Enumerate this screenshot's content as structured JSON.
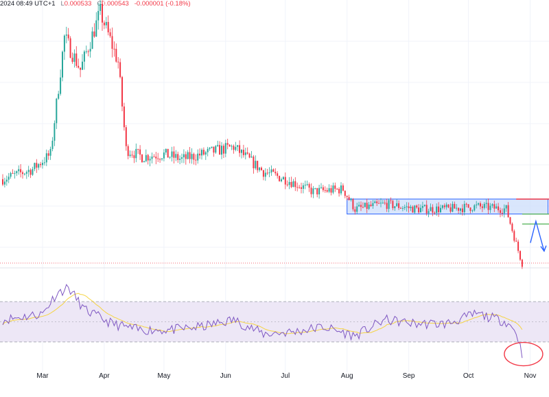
{
  "header": {
    "datetime": "2024 08:49 UTC+1",
    "low_key": "L",
    "low_val": "0.000533",
    "close_key": "C",
    "close_val": "0.000543",
    "change": "-0.000001 (-0.18%)"
  },
  "colors": {
    "up": "#26a69a",
    "down": "#f23645",
    "range_box_fill": "#cfe0fb",
    "range_box_border": "#2962ff",
    "resistance_line": "#f23645",
    "target_line": "#4caf50",
    "arrow": "#2962ff",
    "rsi_line": "#7e57c2",
    "rsi_ma": "#f5d442",
    "rsi_band": "#ede7f6",
    "oversold_circle": "#f23645"
  },
  "chart_data": [
    {
      "type": "candlestick",
      "title": "",
      "x_tick_labels": [
        "Mar",
        "Apr",
        "May",
        "Jun",
        "Jul",
        "Aug",
        "Sep",
        "Oct",
        "Nov"
      ],
      "approx_close_path": [
        {
          "date": "2024-02-10",
          "close": 0.00088
        },
        {
          "date": "2024-02-25",
          "close": 0.00092
        },
        {
          "date": "2024-03-05",
          "close": 0.00098
        },
        {
          "date": "2024-03-12",
          "close": 0.00145
        },
        {
          "date": "2024-03-20",
          "close": 0.00132
        },
        {
          "date": "2024-03-30",
          "close": 0.00155
        },
        {
          "date": "2024-04-08",
          "close": 0.00135
        },
        {
          "date": "2024-04-12",
          "close": 0.001
        },
        {
          "date": "2024-04-20",
          "close": 0.00097
        },
        {
          "date": "2024-05-01",
          "close": 0.00098
        },
        {
          "date": "2024-05-10",
          "close": 0.00096
        },
        {
          "date": "2024-05-25",
          "close": 0.00099
        },
        {
          "date": "2024-06-05",
          "close": 0.00101
        },
        {
          "date": "2024-06-20",
          "close": 0.00091
        },
        {
          "date": "2024-07-01",
          "close": 0.00088
        },
        {
          "date": "2024-07-15",
          "close": 0.00083
        },
        {
          "date": "2024-07-30",
          "close": 0.00084
        },
        {
          "date": "2024-08-05",
          "close": 0.00076
        },
        {
          "date": "2024-08-20",
          "close": 0.00078
        },
        {
          "date": "2024-09-05",
          "close": 0.00076
        },
        {
          "date": "2024-09-20",
          "close": 0.00076
        },
        {
          "date": "2024-10-05",
          "close": 0.00077
        },
        {
          "date": "2024-10-20",
          "close": 0.00076
        },
        {
          "date": "2024-10-25",
          "close": 0.00062
        },
        {
          "date": "2024-10-28",
          "close": 0.00054
        }
      ],
      "annotations": {
        "range_box": {
          "from": "2024-08-01",
          "to": "2024-11-10",
          "price_top": 0.0008,
          "price_bottom": 0.00074
        },
        "resistance_line": {
          "from": "2024-10-25",
          "price": 0.0008
        },
        "target_line_1": {
          "from": "2024-10-28",
          "price": 0.00074
        },
        "target_line_2": {
          "from": "2024-10-28",
          "price": 0.0007
        },
        "last_price_line": {
          "price": 0.000543,
          "style": "dotted"
        }
      }
    },
    {
      "type": "line",
      "title": "",
      "ylim": [
        0,
        100
      ],
      "bands": {
        "upper": 70,
        "middle": 50,
        "lower": 30
      },
      "series": [
        {
          "values": [
            {
              "date": "2024-02-10",
              "value": 52
            },
            {
              "date": "2024-03-01",
              "value": 58
            },
            {
              "date": "2024-03-08",
              "value": 78
            },
            {
              "date": "2024-03-14",
              "value": 84
            },
            {
              "date": "2024-03-22",
              "value": 62
            },
            {
              "date": "2024-04-05",
              "value": 48
            },
            {
              "date": "2024-04-18",
              "value": 42
            },
            {
              "date": "2024-05-05",
              "value": 42
            },
            {
              "date": "2024-05-20",
              "value": 45
            },
            {
              "date": "2024-06-05",
              "value": 52
            },
            {
              "date": "2024-06-20",
              "value": 38
            },
            {
              "date": "2024-07-05",
              "value": 40
            },
            {
              "date": "2024-07-20",
              "value": 45
            },
            {
              "date": "2024-08-05",
              "value": 36
            },
            {
              "date": "2024-08-20",
              "value": 52
            },
            {
              "date": "2024-09-05",
              "value": 48
            },
            {
              "date": "2024-09-20",
              "value": 48
            },
            {
              "date": "2024-10-05",
              "value": 58
            },
            {
              "date": "2024-10-20",
              "value": 50
            },
            {
              "date": "2024-10-25",
              "value": 40
            },
            {
              "date": "2024-10-28",
              "value": 18
            }
          ]
        }
      ]
    }
  ]
}
